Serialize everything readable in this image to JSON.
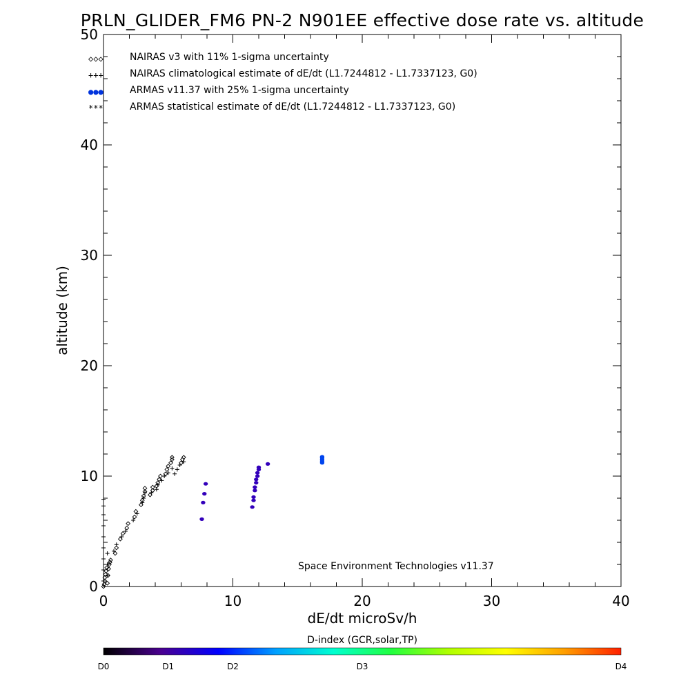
{
  "chart_data": {
    "type": "scatter",
    "title": "PRLN_GLIDER_FM6 PN-2 N901EE effective dose rate vs. altitude",
    "xlabel": "dE/dt microSv/h",
    "ylabel": "altitude (km)",
    "xlim": [
      0,
      40
    ],
    "ylim": [
      0,
      50
    ],
    "x_ticks": [
      "0",
      "10",
      "20",
      "30",
      "40"
    ],
    "y_ticks": [
      "0",
      "10",
      "20",
      "30",
      "40",
      "50"
    ],
    "legend_position": "top-left",
    "credit": "Space Environment Technologies v11.37",
    "legend": [
      {
        "symbol": "◇◇◇",
        "label": "NAIRAS v3 with 11% 1-sigma uncertainty",
        "color": "#000000"
      },
      {
        "symbol": "+++",
        "label": "NAIRAS climatological estimate of dE/dt (L1.7244812 - L1.7337123, G0)",
        "color": "#000000"
      },
      {
        "symbol": "●●●",
        "label": "ARMAS v11.37 with 25% 1-sigma uncertainty",
        "color": "#0033dd"
      },
      {
        "symbol": "***",
        "label": "ARMAS statistical estimate of dE/dt (L1.7244812 - L1.7337123, G0)",
        "color": "#000000"
      }
    ],
    "series": [
      {
        "name": "NAIRAS v3 with 11% 1-sigma uncertainty",
        "marker": "diamond",
        "color": "#000000",
        "points": [
          [
            0.0,
            0.0
          ],
          [
            0.05,
            0.2
          ],
          [
            0.1,
            0.5
          ],
          [
            0.1,
            0.8
          ],
          [
            0.15,
            1.1
          ],
          [
            0.2,
            1.4
          ],
          [
            0.25,
            1.7
          ],
          [
            0.3,
            0.3
          ],
          [
            0.35,
            1.0
          ],
          [
            0.4,
            1.6
          ],
          [
            0.45,
            2.0
          ],
          [
            0.5,
            2.2
          ],
          [
            0.55,
            2.4
          ],
          [
            0.9,
            3.0
          ],
          [
            1.0,
            3.5
          ],
          [
            1.3,
            4.3
          ],
          [
            1.5,
            4.8
          ],
          [
            1.8,
            5.3
          ],
          [
            1.9,
            5.7
          ],
          [
            2.4,
            6.3
          ],
          [
            2.5,
            6.8
          ],
          [
            2.9,
            7.4
          ],
          [
            3.0,
            7.8
          ],
          [
            3.1,
            8.2
          ],
          [
            3.2,
            8.6
          ],
          [
            3.2,
            8.9
          ],
          [
            3.6,
            8.3
          ],
          [
            3.8,
            8.7
          ],
          [
            3.8,
            9.0
          ],
          [
            4.1,
            9.1
          ],
          [
            4.2,
            9.4
          ],
          [
            4.3,
            9.7
          ],
          [
            4.4,
            10.0
          ],
          [
            4.8,
            10.2
          ],
          [
            4.9,
            10.6
          ],
          [
            5.0,
            10.9
          ],
          [
            5.2,
            11.2
          ],
          [
            5.3,
            11.5
          ],
          [
            5.3,
            11.7
          ],
          [
            6.0,
            11.2
          ],
          [
            6.1,
            11.5
          ],
          [
            6.2,
            11.7
          ]
        ]
      },
      {
        "name": "NAIRAS climatological estimate of dE/dt (L1.7244812 - L1.7337123, G0)",
        "marker": "plus",
        "color": "#000000",
        "points": [
          [
            0.0,
            0.5
          ],
          [
            0.0,
            1.5
          ],
          [
            0.0,
            2.5
          ],
          [
            0.0,
            3.5
          ],
          [
            0.0,
            4.5
          ],
          [
            0.0,
            5.5
          ],
          [
            0.0,
            6.5
          ],
          [
            0.0,
            7.3
          ],
          [
            0.0,
            7.9
          ],
          [
            0.3,
            1.0
          ],
          [
            0.3,
            2.0
          ],
          [
            0.3,
            3.0
          ],
          [
            0.8,
            3.2
          ],
          [
            1.0,
            3.8
          ],
          [
            1.4,
            4.5
          ],
          [
            1.7,
            5.0
          ],
          [
            2.3,
            6.0
          ],
          [
            2.6,
            6.6
          ],
          [
            3.0,
            7.6
          ],
          [
            3.1,
            8.0
          ],
          [
            3.2,
            8.5
          ],
          [
            3.7,
            8.5
          ],
          [
            4.1,
            8.8
          ],
          [
            4.2,
            9.2
          ],
          [
            4.5,
            9.6
          ],
          [
            4.7,
            10.0
          ],
          [
            5.0,
            10.3
          ],
          [
            5.3,
            10.7
          ],
          [
            5.5,
            10.2
          ],
          [
            5.7,
            10.6
          ],
          [
            5.9,
            11.0
          ],
          [
            6.2,
            11.3
          ]
        ]
      },
      {
        "name": "ARMAS v11.37 with 25% 1-sigma uncertainty",
        "marker": "dot",
        "color": "#3300bb",
        "points": [
          [
            7.6,
            6.1
          ],
          [
            7.7,
            7.6
          ],
          [
            7.8,
            8.4
          ],
          [
            7.9,
            9.3
          ],
          [
            11.5,
            7.2
          ],
          [
            11.6,
            7.8
          ],
          [
            11.6,
            8.1
          ],
          [
            11.7,
            8.7
          ],
          [
            11.7,
            9.0
          ],
          [
            11.8,
            9.4
          ],
          [
            11.8,
            9.7
          ],
          [
            11.9,
            10.0
          ],
          [
            11.9,
            10.3
          ],
          [
            12.0,
            10.6
          ],
          [
            12.0,
            10.8
          ],
          [
            12.7,
            11.1
          ]
        ]
      },
      {
        "name": "ARMAS v11.37 with 25% 1-sigma uncertainty",
        "marker": "dot",
        "color": "#0044ee",
        "points": [
          [
            16.9,
            11.2
          ],
          [
            16.9,
            11.35
          ],
          [
            16.9,
            11.5
          ],
          [
            16.9,
            11.65
          ],
          [
            16.9,
            11.75
          ]
        ]
      }
    ],
    "colorbar": {
      "title": "D-index (GCR,solar,TP)",
      "ticks": [
        {
          "label": "D0",
          "pos": 0.0
        },
        {
          "label": "D1",
          "pos": 0.125
        },
        {
          "label": "D2",
          "pos": 0.25
        },
        {
          "label": "D3",
          "pos": 0.5
        },
        {
          "label": "D4",
          "pos": 1.0
        }
      ],
      "colors": [
        "#000000",
        "#4a0090",
        "#0000ff",
        "#00a0ff",
        "#00ffd0",
        "#20ff40",
        "#b0ff00",
        "#ffff00",
        "#ffa000",
        "#ff2000"
      ]
    }
  }
}
